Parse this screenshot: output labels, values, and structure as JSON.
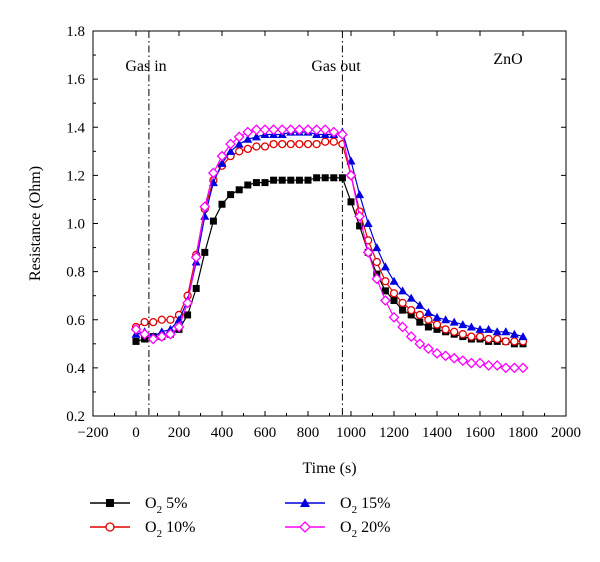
{
  "chart_data": {
    "type": "line",
    "title": "",
    "xlabel": "Time (s)",
    "ylabel": "Resistance (Ohm)",
    "xlim": [
      -200,
      2000
    ],
    "ylim": [
      0.2,
      1.8
    ],
    "xticks": [
      -200,
      0,
      200,
      400,
      600,
      800,
      1000,
      1200,
      1400,
      1600,
      1800,
      2000
    ],
    "yticks": [
      0.2,
      0.4,
      0.6,
      0.8,
      1.0,
      1.2,
      1.4,
      1.6,
      1.8
    ],
    "xtick_labels": [
      "−200",
      "0",
      "200",
      "400",
      "600",
      "800",
      "1000",
      "1200",
      "1400",
      "1600",
      "1800",
      "2000"
    ],
    "ytick_labels": [
      "0.2",
      "0.4",
      "0.6",
      "0.8",
      "1.0",
      "1.2",
      "1.4",
      "1.6",
      "1.8"
    ],
    "grid": false,
    "legend_position": "bottom",
    "annotations": [
      {
        "text": "Gas in",
        "x": 60
      },
      {
        "text": "Gas out",
        "x": 960
      },
      {
        "text": "ZnO"
      }
    ],
    "markers": [
      {
        "label": "Gas in",
        "x": 60,
        "style": "dash-dot"
      },
      {
        "label": "Gas out",
        "x": 960,
        "style": "dash-dot"
      }
    ],
    "x": [
      0,
      40,
      80,
      120,
      160,
      200,
      240,
      280,
      320,
      360,
      400,
      440,
      480,
      520,
      560,
      600,
      640,
      680,
      720,
      760,
      800,
      840,
      880,
      920,
      960,
      1000,
      1040,
      1080,
      1120,
      1160,
      1200,
      1240,
      1280,
      1320,
      1360,
      1400,
      1440,
      1480,
      1520,
      1560,
      1600,
      1640,
      1680,
      1720,
      1760,
      1800
    ],
    "series": [
      {
        "name": "O2 5%",
        "legend": {
          "main": "O",
          "sub": "2",
          "rest": " 5%"
        },
        "color": "#000000",
        "marker": "square",
        "values": [
          0.51,
          0.52,
          0.53,
          0.53,
          0.54,
          0.56,
          0.62,
          0.73,
          0.88,
          1.01,
          1.08,
          1.12,
          1.14,
          1.16,
          1.17,
          1.17,
          1.18,
          1.18,
          1.18,
          1.18,
          1.18,
          1.19,
          1.19,
          1.19,
          1.19,
          1.09,
          0.99,
          0.88,
          0.79,
          0.72,
          0.68,
          0.64,
          0.62,
          0.59,
          0.57,
          0.56,
          0.55,
          0.54,
          0.53,
          0.52,
          0.52,
          0.51,
          0.51,
          0.51,
          0.5,
          0.5
        ]
      },
      {
        "name": "O2 10%",
        "legend": {
          "main": "O",
          "sub": "2",
          "rest": " 10%"
        },
        "color": "#e00000",
        "marker": "circle",
        "values": [
          0.57,
          0.59,
          0.59,
          0.6,
          0.6,
          0.62,
          0.7,
          0.87,
          1.06,
          1.18,
          1.24,
          1.28,
          1.3,
          1.31,
          1.32,
          1.32,
          1.33,
          1.33,
          1.33,
          1.33,
          1.33,
          1.33,
          1.34,
          1.34,
          1.33,
          1.2,
          1.05,
          0.93,
          0.84,
          0.76,
          0.71,
          0.67,
          0.64,
          0.62,
          0.6,
          0.58,
          0.56,
          0.55,
          0.54,
          0.53,
          0.53,
          0.52,
          0.52,
          0.51,
          0.51,
          0.51
        ]
      },
      {
        "name": "O2 15%",
        "legend": {
          "main": "O",
          "sub": "2",
          "rest": " 15%"
        },
        "color": "#0000e0",
        "marker": "triangle",
        "values": [
          0.54,
          0.55,
          0.53,
          0.55,
          0.56,
          0.6,
          0.68,
          0.84,
          1.03,
          1.17,
          1.25,
          1.3,
          1.33,
          1.35,
          1.36,
          1.37,
          1.37,
          1.37,
          1.38,
          1.38,
          1.38,
          1.37,
          1.37,
          1.37,
          1.38,
          1.26,
          1.12,
          1.0,
          0.9,
          0.82,
          0.76,
          0.72,
          0.69,
          0.66,
          0.63,
          0.61,
          0.6,
          0.59,
          0.58,
          0.57,
          0.56,
          0.56,
          0.55,
          0.55,
          0.54,
          0.53
        ]
      },
      {
        "name": "O2 20%",
        "legend": {
          "main": "O",
          "sub": "2",
          "rest": " 20%"
        },
        "color": "#ff00ff",
        "marker": "diamond",
        "values": [
          0.56,
          0.54,
          0.52,
          0.53,
          0.54,
          0.57,
          0.67,
          0.86,
          1.07,
          1.21,
          1.28,
          1.33,
          1.36,
          1.38,
          1.39,
          1.39,
          1.39,
          1.39,
          1.39,
          1.39,
          1.39,
          1.39,
          1.39,
          1.38,
          1.37,
          1.2,
          1.03,
          0.88,
          0.77,
          0.68,
          0.61,
          0.57,
          0.53,
          0.5,
          0.48,
          0.46,
          0.45,
          0.44,
          0.43,
          0.42,
          0.42,
          0.41,
          0.41,
          0.4,
          0.4,
          0.4
        ]
      }
    ]
  }
}
